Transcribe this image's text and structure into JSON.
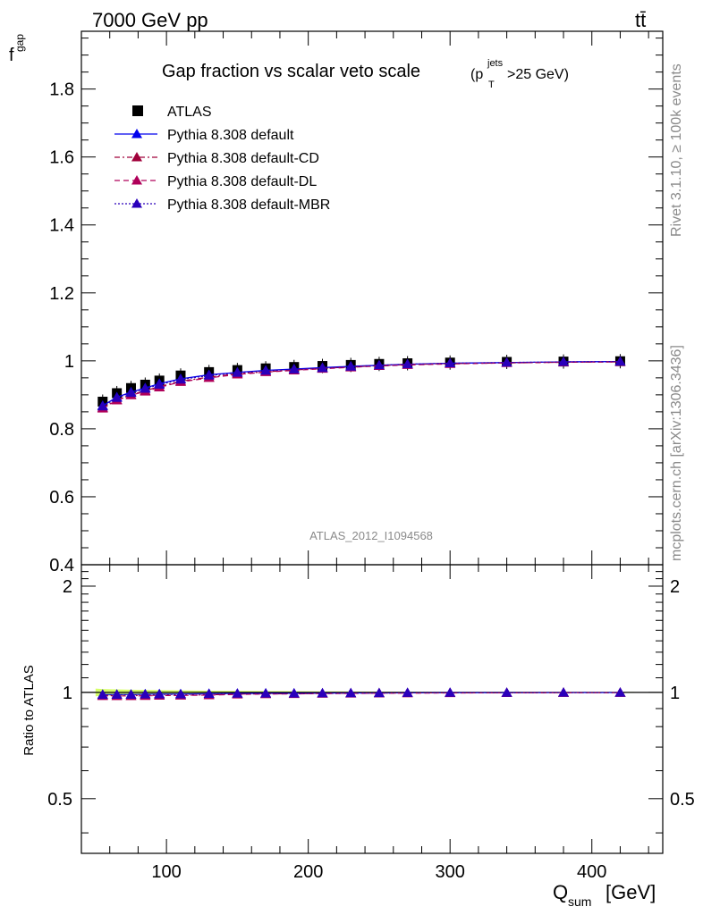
{
  "header": {
    "energy": "7000 GeV pp",
    "process": "tt̄"
  },
  "side": {
    "rivet": "Rivet 3.1.10, ≥ 100k events",
    "source": "mcplots.cern.ch [arXiv:1306.3436]"
  },
  "watermark": "ATLAS_2012_I1094568",
  "chart_data": [
    {
      "type": "line",
      "title": "Gap fraction vs scalar veto scale",
      "title_cut": {
        "p": "(p",
        "sub": "T",
        "sup": "jets",
        "rest": ">25 GeV)"
      },
      "ylabel": {
        "main": "f",
        "sub": "gap"
      },
      "xlim": [
        40,
        450
      ],
      "ylim": [
        0.4,
        1.97
      ],
      "yticks": [
        0.4,
        0.6,
        0.8,
        1,
        1.2,
        1.4,
        1.6,
        1.8
      ],
      "ytick_labels": [
        "0.4",
        "0.6",
        "0.8",
        "1",
        "1.2",
        "1.4",
        "1.6",
        "1.8"
      ],
      "legend_position": "top-left",
      "x": [
        55,
        65,
        75,
        85,
        95,
        110,
        130,
        150,
        170,
        190,
        210,
        230,
        250,
        270,
        300,
        340,
        380,
        420
      ],
      "series": [
        {
          "name": "ATLAS",
          "style": "marker",
          "color": "#000000",
          "values": [
            0.88,
            0.905,
            0.92,
            0.93,
            0.942,
            0.957,
            0.967,
            0.973,
            0.978,
            0.982,
            0.985,
            0.988,
            0.991,
            0.993,
            0.995,
            0.997,
            0.998,
            0.999
          ]
        },
        {
          "name": "Pythia 8.308 default",
          "style": "solid",
          "color": "#0000ee",
          "values": [
            0.868,
            0.893,
            0.908,
            0.92,
            0.933,
            0.947,
            0.959,
            0.966,
            0.972,
            0.976,
            0.98,
            0.984,
            0.987,
            0.99,
            0.993,
            0.995,
            0.997,
            0.998
          ]
        },
        {
          "name": "Pythia 8.308 default-CD",
          "style": "dashdot",
          "color": "#a0003a",
          "values": [
            0.862,
            0.885,
            0.9,
            0.912,
            0.924,
            0.94,
            0.952,
            0.962,
            0.968,
            0.973,
            0.978,
            0.982,
            0.986,
            0.989,
            0.992,
            0.994,
            0.996,
            0.997
          ]
        },
        {
          "name": "Pythia 8.308 default-DL",
          "style": "dashed",
          "color": "#b0005a",
          "values": [
            0.86,
            0.884,
            0.899,
            0.91,
            0.922,
            0.938,
            0.95,
            0.96,
            0.967,
            0.972,
            0.977,
            0.981,
            0.985,
            0.988,
            0.991,
            0.994,
            0.996,
            0.997
          ]
        },
        {
          "name": "Pythia 8.308 default-MBR",
          "style": "dotted",
          "color": "#2a00bb",
          "values": [
            0.866,
            0.891,
            0.906,
            0.918,
            0.93,
            0.945,
            0.957,
            0.965,
            0.971,
            0.975,
            0.979,
            0.983,
            0.987,
            0.99,
            0.993,
            0.995,
            0.997,
            0.998
          ]
        }
      ]
    },
    {
      "type": "line",
      "title": "",
      "ylabel": "Ratio to ATLAS",
      "xlabel": {
        "main": "Q",
        "sub": "sum",
        "rest": " [GeV]"
      },
      "xlim": [
        40,
        450
      ],
      "ylim": [
        0.35,
        2.3
      ],
      "log_y": true,
      "xticks": [
        100,
        200,
        300,
        400
      ],
      "xtick_labels": [
        "100",
        "200",
        "300",
        "400"
      ],
      "yticks": [
        0.5,
        1,
        2
      ],
      "ytick_labels": [
        "0.5",
        "1",
        "2"
      ],
      "x": [
        55,
        65,
        75,
        85,
        95,
        110,
        130,
        150,
        170,
        190,
        210,
        230,
        250,
        270,
        300,
        340,
        380,
        420
      ],
      "band": {
        "color": "#ccff44",
        "halfwidth": [
          0.022,
          0.02,
          0.018,
          0.016,
          0.015,
          0.013,
          0.011,
          0.01,
          0.009,
          0.008,
          0.007,
          0.006,
          0.005,
          0.005,
          0.004,
          0.004,
          0.003,
          0.003
        ]
      },
      "series": [
        {
          "name": "Pythia 8.308 default",
          "color": "#0000ee",
          "values": [
            0.986,
            0.987,
            0.987,
            0.989,
            0.99,
            0.99,
            0.992,
            0.993,
            0.994,
            0.994,
            0.995,
            0.996,
            0.996,
            0.997,
            0.998,
            0.998,
            0.999,
            0.999
          ]
        },
        {
          "name": "Pythia 8.308 default-CD",
          "color": "#a0003a",
          "values": [
            0.98,
            0.978,
            0.978,
            0.981,
            0.981,
            0.982,
            0.984,
            0.989,
            0.99,
            0.991,
            0.993,
            0.994,
            0.995,
            0.996,
            0.997,
            0.997,
            0.998,
            0.998
          ]
        },
        {
          "name": "Pythia 8.308 default-DL",
          "color": "#b0005a",
          "values": [
            0.977,
            0.977,
            0.977,
            0.978,
            0.979,
            0.98,
            0.982,
            0.987,
            0.989,
            0.99,
            0.992,
            0.993,
            0.994,
            0.995,
            0.996,
            0.997,
            0.998,
            0.998
          ]
        },
        {
          "name": "Pythia 8.308 default-MBR",
          "color": "#2a00bb",
          "values": [
            0.984,
            0.985,
            0.985,
            0.987,
            0.987,
            0.987,
            0.99,
            0.992,
            0.993,
            0.993,
            0.994,
            0.995,
            0.996,
            0.997,
            0.998,
            0.998,
            0.999,
            0.999
          ]
        }
      ]
    }
  ]
}
